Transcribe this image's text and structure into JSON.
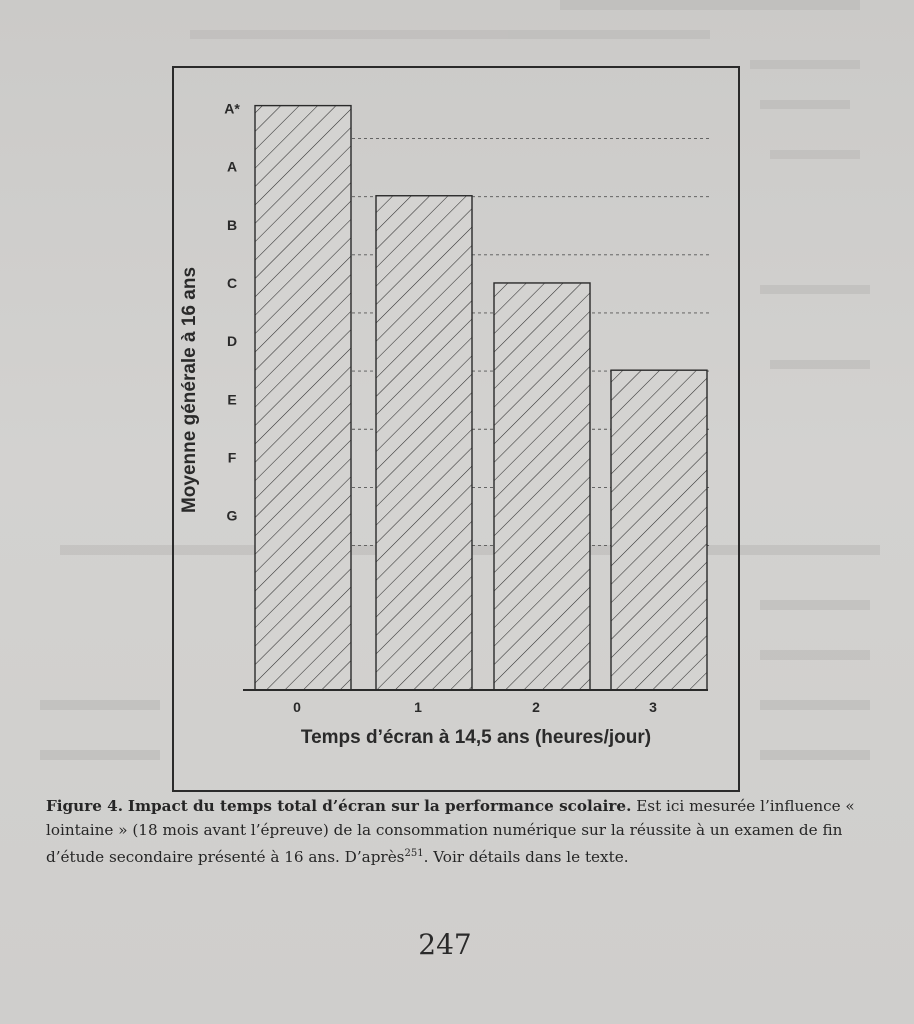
{
  "chart_data": {
    "type": "bar",
    "xlabel": "Temps d’écran à 14,5 ans (heures/jour)",
    "ylabel": "Moyenne générale à 16 ans",
    "categories": [
      "0",
      "1",
      "2",
      "3"
    ],
    "y_ticks": [
      "G",
      "F",
      "E",
      "D",
      "C",
      "B",
      "A",
      "A*"
    ],
    "ylim": [
      0,
      10.8
    ],
    "values": [
      10.05,
      8.5,
      7.0,
      5.5
    ],
    "grid": "dashed horizontal",
    "legend": "none",
    "bar_fill": "diagonal hatch"
  },
  "caption": {
    "label": "Figure 4.",
    "title": "Impact du temps total d’écran sur la performance scolaire.",
    "text_1": " Est ici mesurée l’influence « lointaine » (18 mois avant l’épreuve) de la consommation numérique sur la réussite à un examen de fin d’étude secondaire présenté à 16 ans. D’après",
    "ref": "251",
    "text_2": ". Voir détails dans le texte."
  },
  "page_number": "247",
  "colors": {
    "ink": "#2a2a2a",
    "paper": "#d2d1cf"
  }
}
